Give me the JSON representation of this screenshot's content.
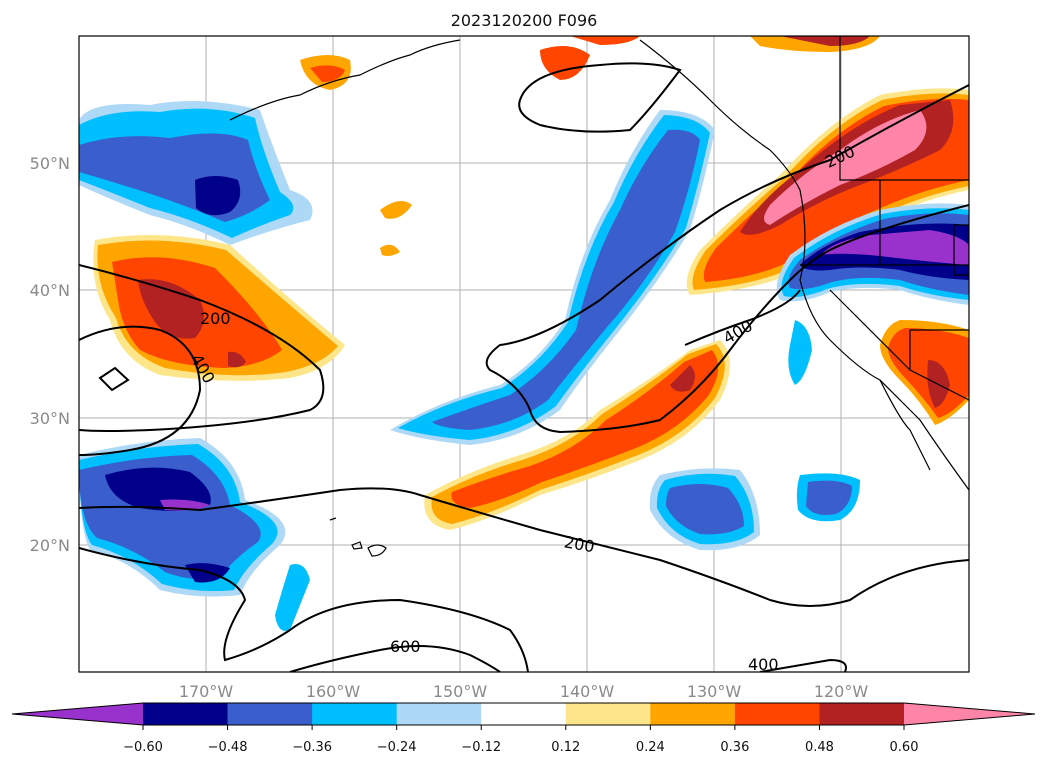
{
  "title": "2023120200 F096",
  "latitude_labels": [
    "50°N",
    "40°N",
    "30°N",
    "20°N"
  ],
  "longitude_labels": [
    "170°W",
    "160°W",
    "150°W",
    "140°W",
    "130°W",
    "120°W"
  ],
  "colorbar": {
    "tick_labels": [
      "−0.60",
      "−0.48",
      "−0.36",
      "−0.24",
      "−0.12",
      "0.12",
      "0.24",
      "0.36",
      "0.48",
      "0.60"
    ],
    "colors": [
      "#9932cc",
      "#00008b",
      "#3a5fcd",
      "#00bfff",
      "#add8f6",
      "#ffffff",
      "#fde68a",
      "#ffa500",
      "#ff4500",
      "#b22222",
      "#ff85a8"
    ]
  },
  "contour_labels": [
    "200",
    "400",
    "200",
    "400",
    "200",
    "600",
    "400"
  ]
}
